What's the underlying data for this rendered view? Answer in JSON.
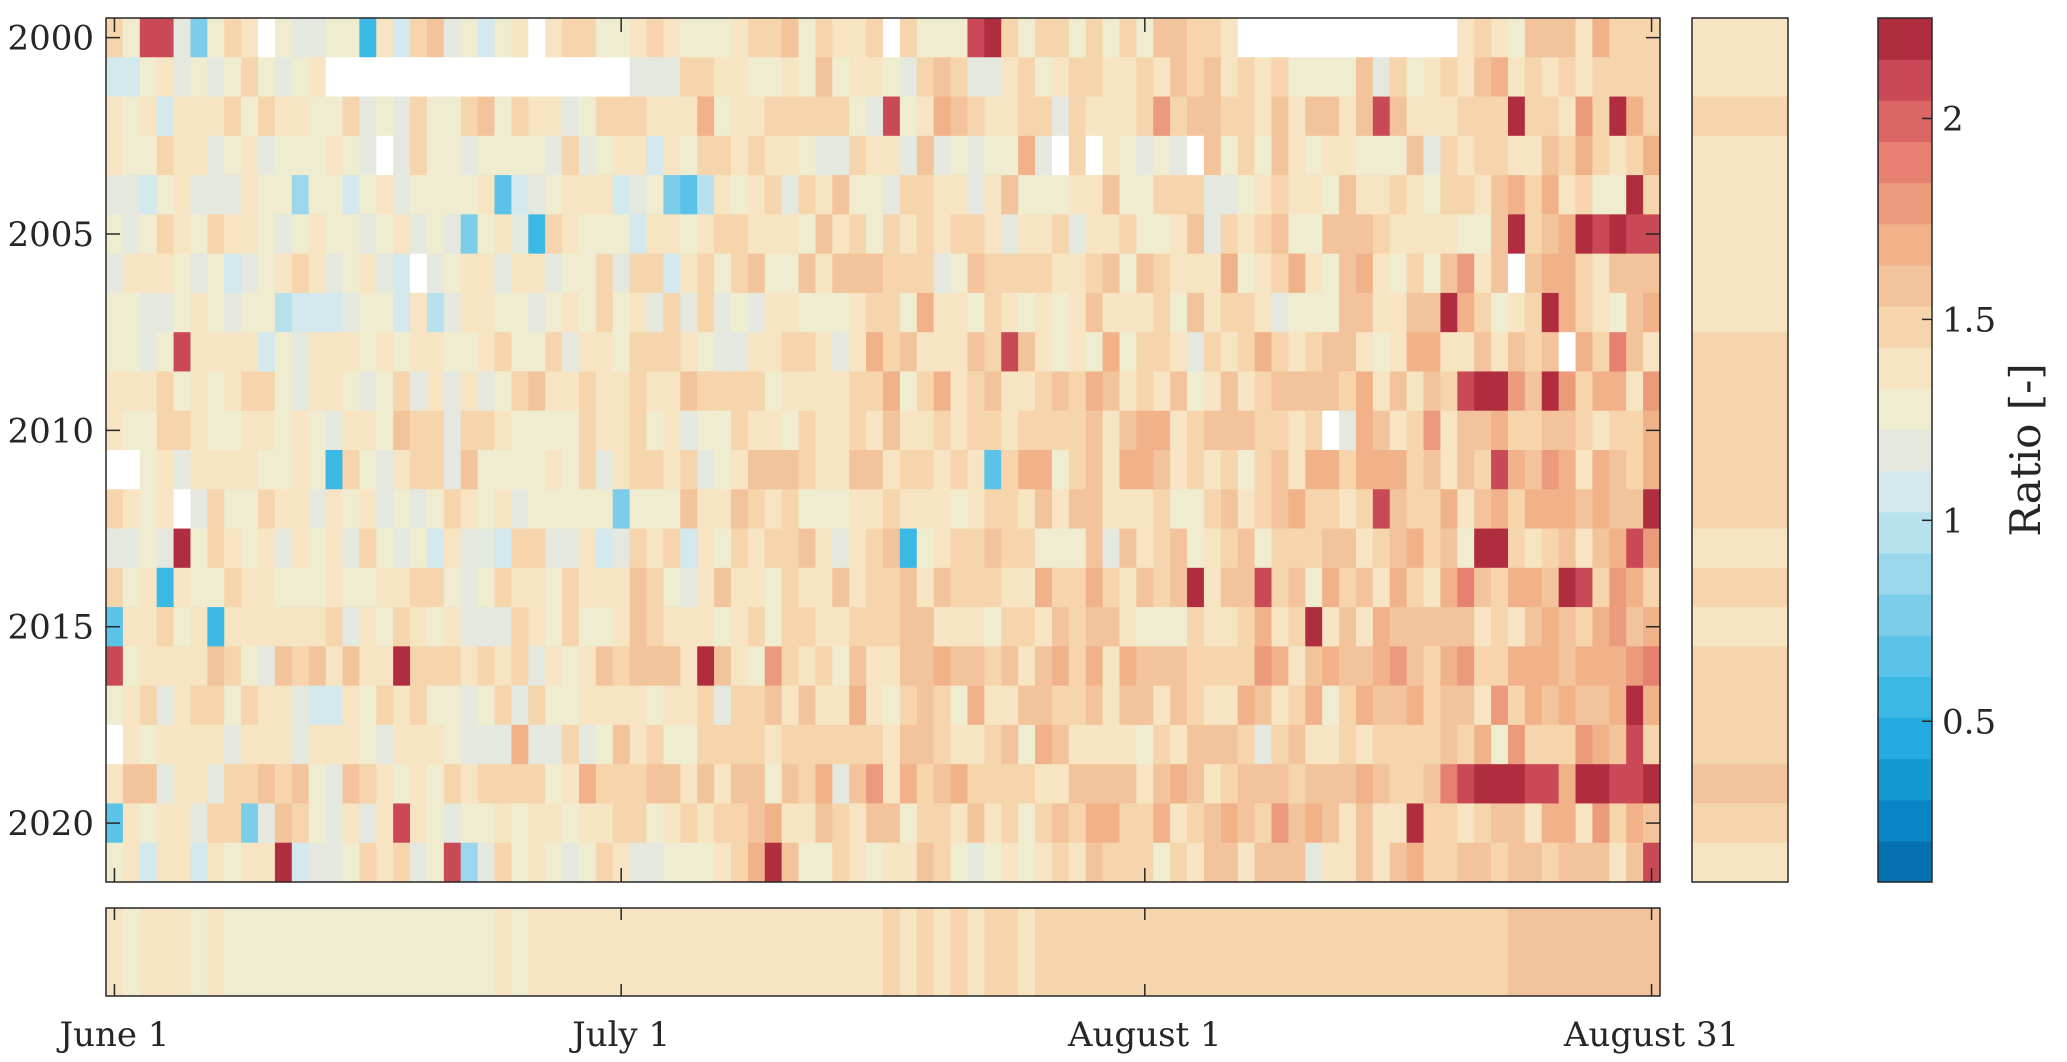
{
  "chart_data": {
    "type": "heatmap",
    "title": "",
    "ylabel": "",
    "xlabel": "",
    "x_axis": {
      "range": [
        "June 1",
        "August 31"
      ],
      "days": 92,
      "tick_labels": [
        "June 1",
        "July 1",
        "August 1",
        "August 31"
      ],
      "tick_days": [
        1,
        31,
        62,
        92
      ]
    },
    "y_axis": {
      "range": [
        2000,
        2021
      ],
      "direction": "reversed",
      "tick_labels": [
        "2000",
        "2005",
        "2010",
        "2015",
        "2020"
      ],
      "tick_values": [
        2000,
        2005,
        2010,
        2015,
        2020
      ]
    },
    "colorbar": {
      "label": "Ratio [-]",
      "range": [
        0.1,
        2.25
      ],
      "tick_labels": [
        "0.5",
        "1",
        "1.5",
        "2"
      ],
      "tick_values": [
        0.5,
        1.0,
        1.5,
        2.0
      ],
      "levels": 21,
      "colormap": "blue-white-red",
      "colors": [
        "#0571b0",
        "#0a85c4",
        "#139ad3",
        "#23abdf",
        "#3cb8e4",
        "#5bc3e8",
        "#7ccde9",
        "#9ad7ec",
        "#b8e1ee",
        "#d3e9ed",
        "#e4e8de",
        "#efecd0",
        "#f6e4c2",
        "#f6d5ad",
        "#f3c49b",
        "#f1b28a",
        "#ec9a7c",
        "#e68070",
        "#dc6566",
        "#c94a56",
        "#b02d40"
      ]
    },
    "missing_cells": [
      {
        "year": 2000,
        "days": [
          10,
          26,
          47
        ]
      },
      {
        "year": 2000,
        "days_range": [
          68,
          80
        ]
      },
      {
        "year": 2001,
        "days_range": [
          14,
          31
        ]
      },
      {
        "year": 2003,
        "days": [
          17,
          57,
          59,
          65
        ]
      },
      {
        "year": 2006,
        "days": [
          19,
          84
        ]
      },
      {
        "year": 2008,
        "days": [
          87
        ]
      },
      {
        "year": 2010,
        "days": [
          73
        ]
      },
      {
        "year": 2011,
        "days": [
          1,
          2
        ]
      },
      {
        "year": 2012,
        "days": [
          5
        ]
      },
      {
        "year": 2018,
        "days": [
          1
        ]
      }
    ],
    "warm_anomalies": [
      {
        "year": 2000,
        "days": [
          3,
          4,
          52,
          53
        ]
      },
      {
        "year": 2002,
        "days": [
          47,
          76,
          84,
          90
        ]
      },
      {
        "year": 2004,
        "days": [
          91
        ]
      },
      {
        "year": 2005,
        "days": [
          84,
          88,
          89,
          90,
          91,
          92
        ]
      },
      {
        "year": 2007,
        "days": [
          80,
          86
        ]
      },
      {
        "year": 2008,
        "days": [
          5,
          54
        ]
      },
      {
        "year": 2009,
        "days": [
          81,
          82,
          83,
          86
        ]
      },
      {
        "year": 2011,
        "days": [
          83
        ]
      },
      {
        "year": 2012,
        "days": [
          76,
          92
        ]
      },
      {
        "year": 2013,
        "days": [
          5,
          82,
          83,
          91
        ]
      },
      {
        "year": 2014,
        "days": [
          65,
          69,
          87,
          88
        ]
      },
      {
        "year": 2015,
        "days": [
          72
        ]
      },
      {
        "year": 2016,
        "days": [
          1,
          18,
          36
        ]
      },
      {
        "year": 2017,
        "days": [
          91
        ]
      },
      {
        "year": 2018,
        "days": [
          91
        ]
      },
      {
        "year": 2019,
        "days": [
          81,
          82,
          83,
          84,
          85,
          86,
          88,
          89,
          90,
          91,
          92
        ]
      },
      {
        "year": 2020,
        "days": [
          18,
          78
        ]
      },
      {
        "year": 2021,
        "days": [
          11,
          21,
          40,
          92
        ]
      }
    ],
    "cool_anomalies": [
      {
        "year": 2000,
        "days": [
          6,
          16
        ]
      },
      {
        "year": 2004,
        "days": [
          12,
          24,
          34,
          35
        ]
      },
      {
        "year": 2005,
        "days": [
          22,
          26
        ]
      },
      {
        "year": 2011,
        "days": [
          14,
          53
        ]
      },
      {
        "year": 2012,
        "days": [
          31
        ]
      },
      {
        "year": 2013,
        "days": [
          48
        ]
      },
      {
        "year": 2014,
        "days": [
          4
        ]
      },
      {
        "year": 2015,
        "days": [
          1,
          7
        ]
      },
      {
        "year": 2020,
        "days": [
          1,
          9
        ]
      },
      {
        "year": 2021,
        "days": [
          22
        ]
      }
    ],
    "seasonal_mean": {
      "description": "Bottom strip: mean ratio per day across all years",
      "days": [
        1,
        8,
        15,
        22,
        29,
        36,
        43,
        50,
        57,
        64,
        71,
        78,
        85,
        92
      ],
      "values": [
        1.32,
        1.33,
        1.3,
        1.32,
        1.35,
        1.4,
        1.42,
        1.43,
        1.45,
        1.46,
        1.48,
        1.47,
        1.55,
        1.6
      ]
    },
    "annual_mean": {
      "description": "Right strip: mean ratio per year across the season",
      "years": [
        2000,
        2001,
        2002,
        2003,
        2004,
        2005,
        2006,
        2007,
        2008,
        2009,
        2010,
        2011,
        2012,
        2013,
        2014,
        2015,
        2016,
        2017,
        2018,
        2019,
        2020,
        2021
      ],
      "values": [
        1.4,
        1.38,
        1.45,
        1.38,
        1.37,
        1.4,
        1.4,
        1.38,
        1.45,
        1.46,
        1.46,
        1.45,
        1.44,
        1.4,
        1.48,
        1.43,
        1.52,
        1.46,
        1.45,
        1.54,
        1.45,
        1.42
      ]
    }
  }
}
